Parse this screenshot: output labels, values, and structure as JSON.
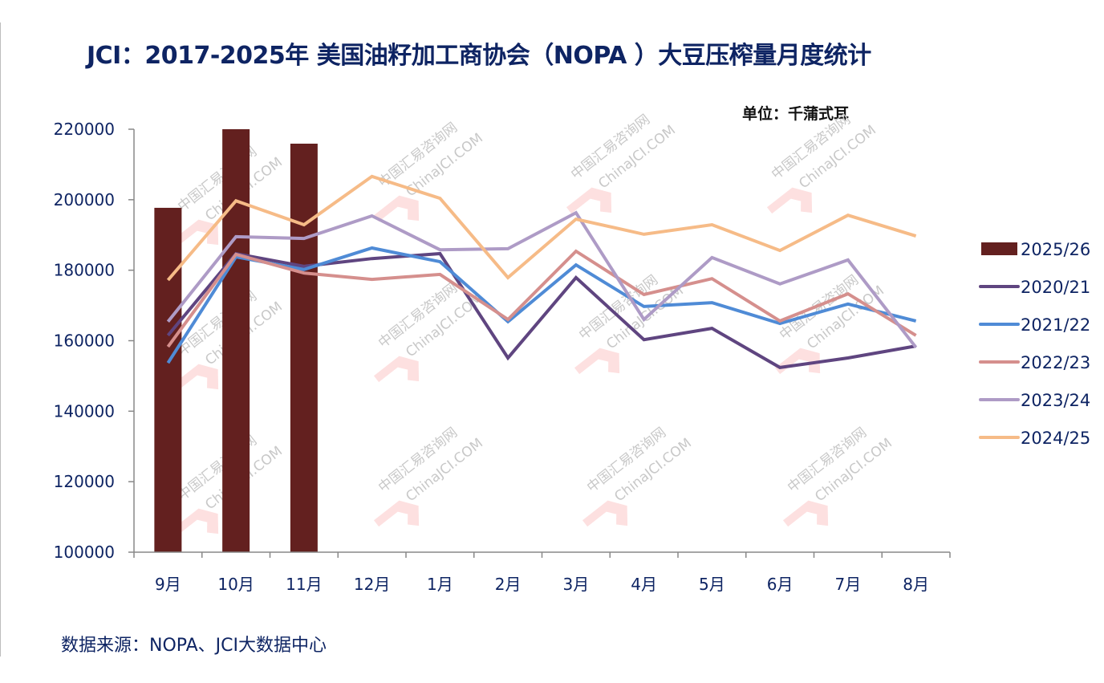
{
  "title": "JCI：2017-2025年 美国油籽加工商协会（NOPA ）大豆压榨量月度统计",
  "unit_label": "单位：千蒲式耳",
  "source": "数据来源：NOPA、JCI大数据中心",
  "watermark": [
    "中国汇易咨询网",
    "ChinaJCI.COM"
  ],
  "chart_data": {
    "type": "bar+line",
    "title": "JCI：2017-2025年 美国油籽加工商协会（NOPA ）大豆压榨量月度统计",
    "xlabel": "",
    "ylabel": "单位：千蒲式耳",
    "categories": [
      "9月",
      "10月",
      "11月",
      "12月",
      "1月",
      "2月",
      "3月",
      "4月",
      "5月",
      "6月",
      "7月",
      "8月"
    ],
    "ylim": [
      100000,
      220000
    ],
    "yticks": [
      100000,
      120000,
      140000,
      160000,
      180000,
      200000,
      220000
    ],
    "ytick_labels": [
      "100000",
      "120000",
      "140000",
      "160000",
      "180000",
      "200000",
      "220000"
    ],
    "grid": false,
    "legend_position": "right",
    "series": [
      {
        "name": "2025/26",
        "type": "bar",
        "color": "#63201f",
        "values": [
          197700,
          220000,
          215900,
          null,
          null,
          null,
          null,
          null,
          null,
          null,
          null,
          null
        ]
      },
      {
        "name": "2020/21",
        "type": "line",
        "color": "#5f4580",
        "values": [
          161500,
          184700,
          181100,
          183300,
          184700,
          155100,
          177900,
          160300,
          163500,
          152400,
          155100,
          158500
        ]
      },
      {
        "name": "2021/22",
        "type": "line",
        "color": "#4f8bd6",
        "values": [
          153700,
          183800,
          180200,
          186300,
          182400,
          165400,
          181500,
          169700,
          170800,
          164900,
          170400,
          165600
        ]
      },
      {
        "name": "2022/23",
        "type": "line",
        "color": "#d58f8d",
        "values": [
          158300,
          184500,
          179200,
          177400,
          178800,
          166000,
          185400,
          173100,
          177600,
          165600,
          173300,
          161500
        ]
      },
      {
        "name": "2023/24",
        "type": "line",
        "color": "#ae9bc6",
        "values": [
          165400,
          189500,
          189000,
          195400,
          185800,
          186100,
          196300,
          166000,
          183600,
          176100,
          182900,
          158100
        ]
      },
      {
        "name": "2024/25",
        "type": "line",
        "color": "#f6bb87",
        "values": [
          177200,
          199700,
          192900,
          206600,
          200400,
          177900,
          194500,
          190200,
          192900,
          185600,
          195600,
          189700
        ]
      }
    ]
  }
}
